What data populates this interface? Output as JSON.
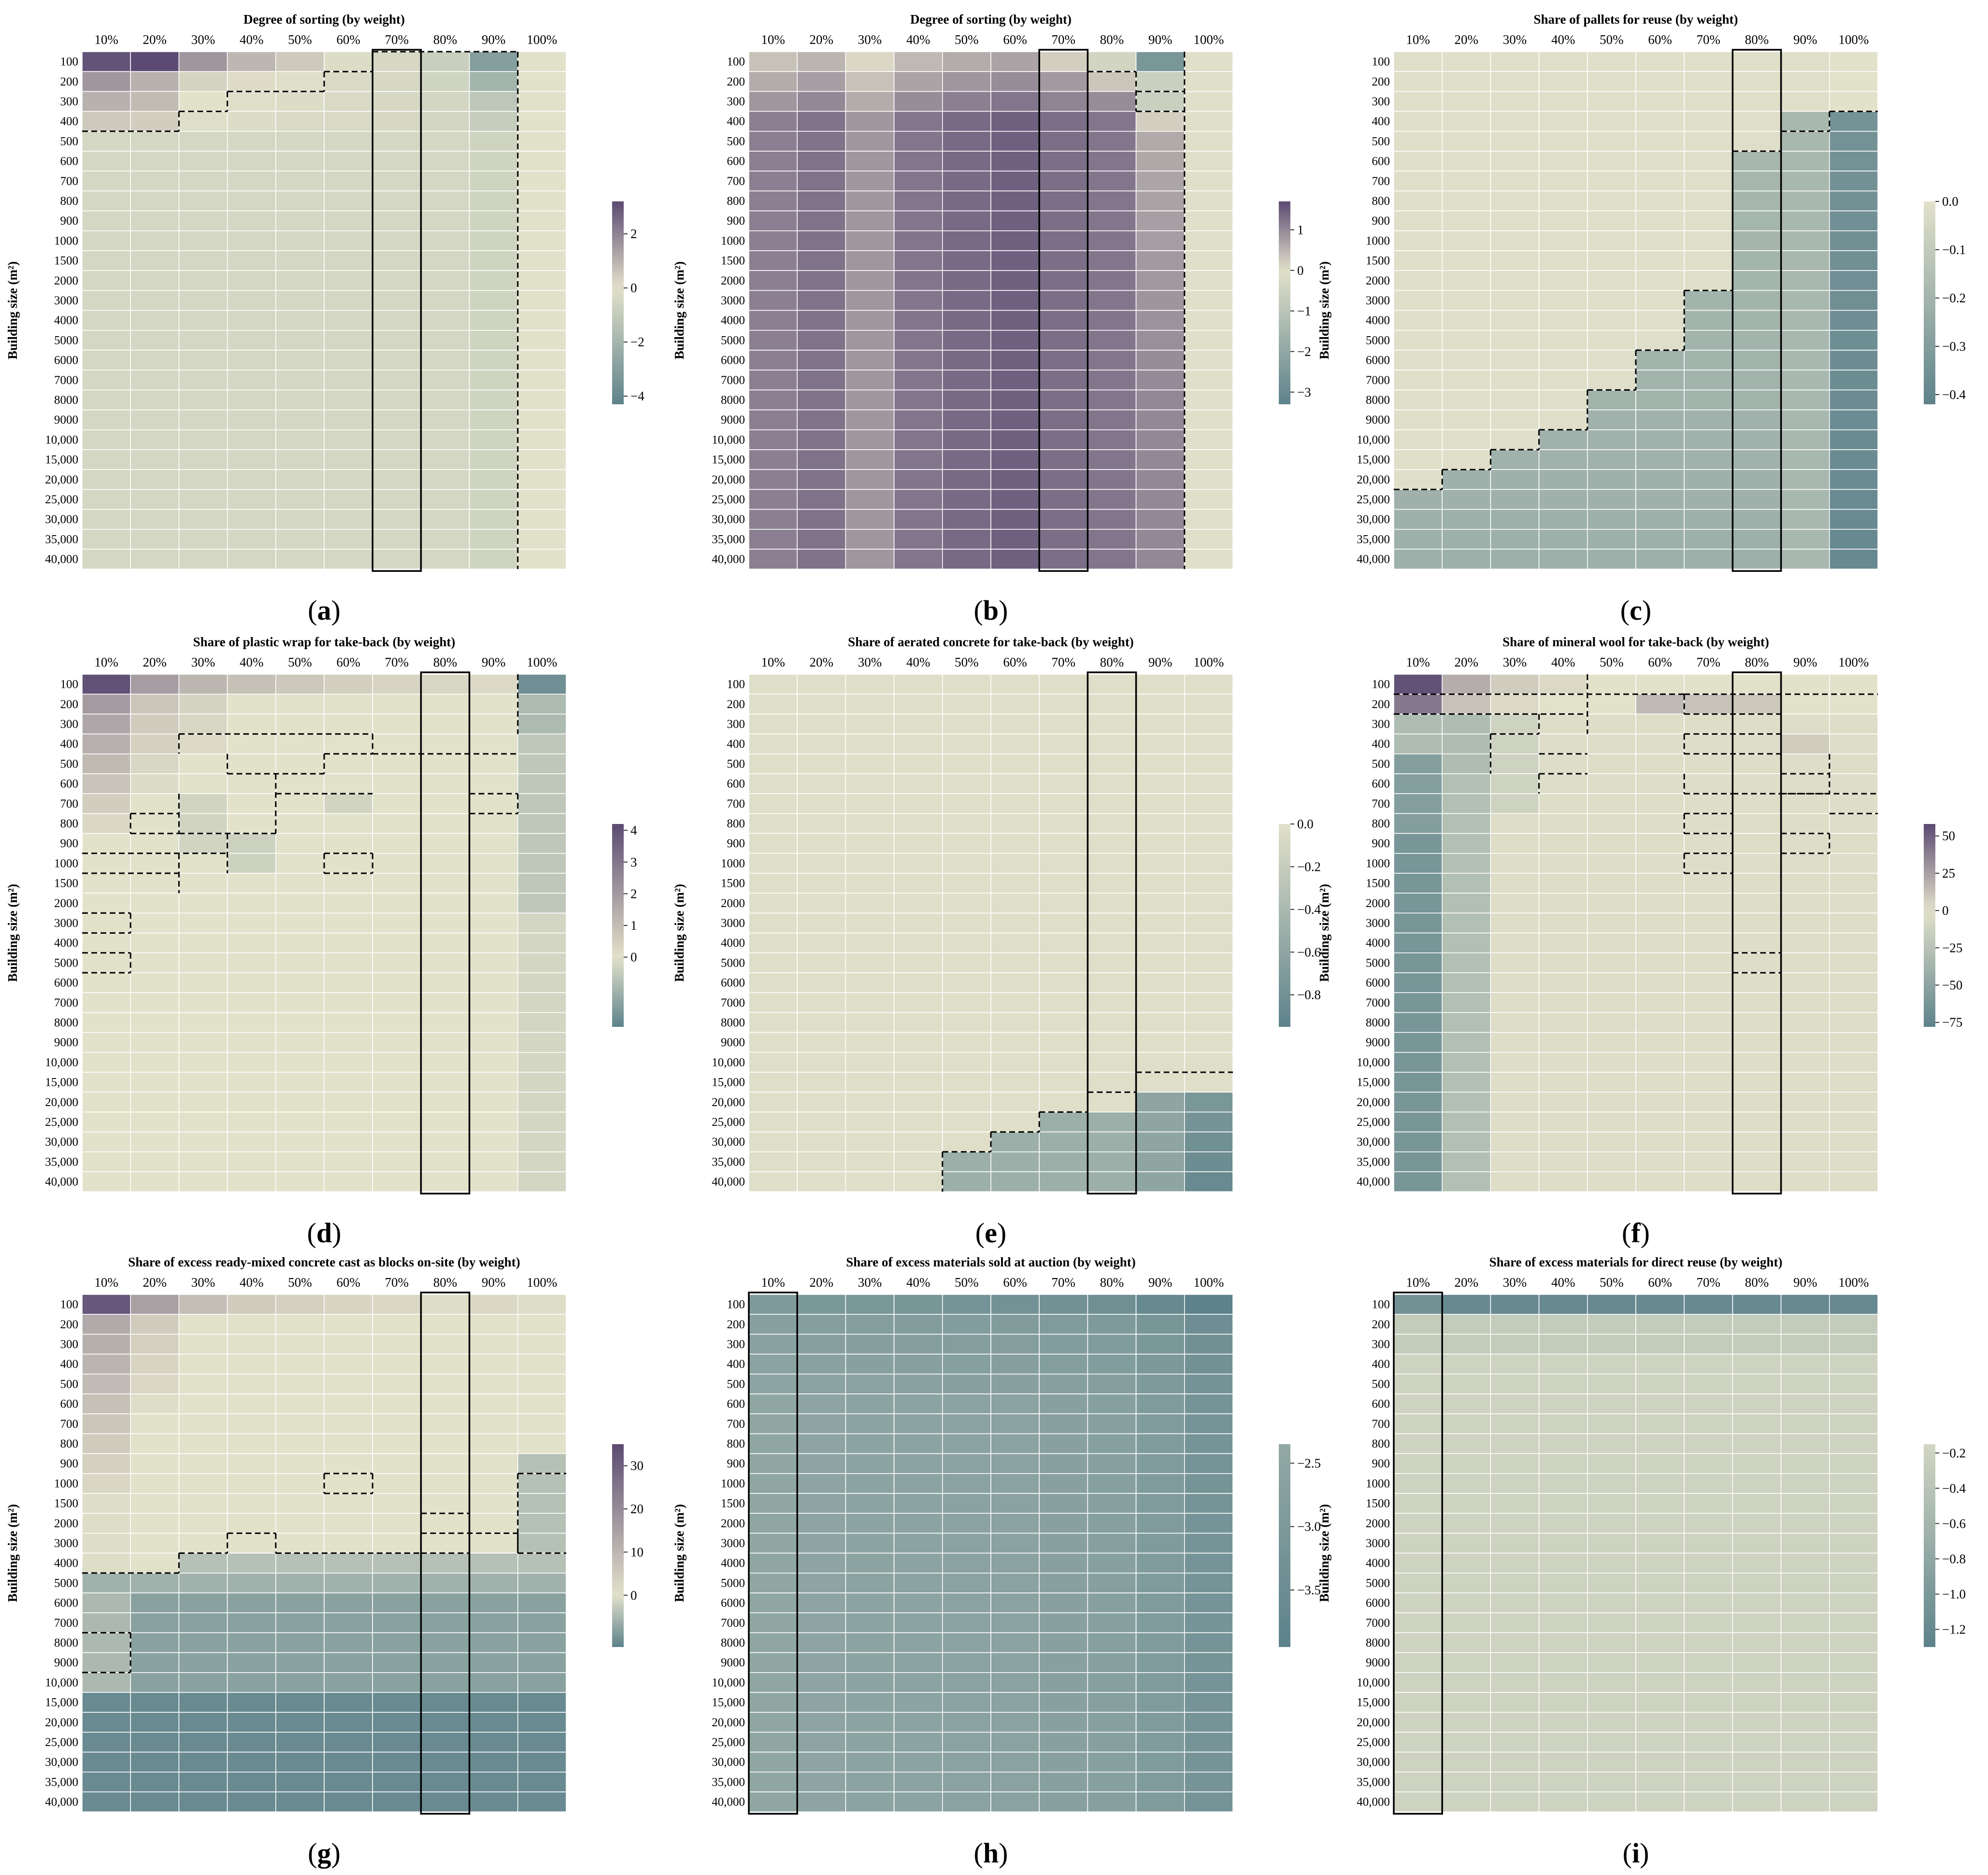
{
  "figure": {
    "palette": {
      "light": "#e2e1ca",
      "dark_purple": "#5c4a72",
      "dark_teal": "#5d828b",
      "grid_line": "#ffffff",
      "dashed_boundary": "#000000",
      "highlight_box": "#000000"
    },
    "x_categories": [
      "10%",
      "20%",
      "30%",
      "40%",
      "50%",
      "60%",
      "70%",
      "80%",
      "90%",
      "100%"
    ],
    "y_categories": [
      "100",
      "200",
      "300",
      "400",
      "500",
      "600",
      "700",
      "800",
      "900",
      "1000",
      "1500",
      "2000",
      "3000",
      "4000",
      "5000",
      "6000",
      "7000",
      "8000",
      "9000",
      "10,000",
      "15,000",
      "20,000",
      "25,000",
      "30,000",
      "35,000",
      "40,000"
    ],
    "ylabel": "Building size (m²)"
  },
  "chart_data": [
    {
      "type": "heatmap",
      "panel_label": "a",
      "title": "Degree of sorting (by weight)",
      "highlight_column": "70%",
      "colorbar_range": [
        -4.3,
        3.2
      ],
      "colorbar_ticks": [
        "2",
        "0",
        "−2",
        "−4"
      ],
      "colorbar_tick_values": [
        2,
        0,
        -2,
        -4
      ],
      "model": {
        "kind": "sorting_a"
      },
      "values_note": "Estimated from colour: top-left cells ~3, 90% column ~-2 to -4, most cells ~-0.5"
    },
    {
      "type": "heatmap",
      "panel_label": "b",
      "title": "Degree of sorting (by weight)",
      "highlight_column": "70%",
      "colorbar_range": [
        -3.3,
        1.7
      ],
      "colorbar_ticks": [
        "1",
        "0",
        "−1",
        "−2",
        "−3"
      ],
      "colorbar_tick_values": [
        1,
        0,
        -1,
        -2,
        -3
      ],
      "model": {
        "kind": "sorting_b"
      },
      "values_note": "Estimated: most cells strongly positive (~1.2-1.6), 90% column near top negative (~-2.5)"
    },
    {
      "type": "heatmap",
      "panel_label": "c",
      "title": "Share of pallets for reuse (by weight)",
      "highlight_column": "80%",
      "colorbar_range": [
        -0.42,
        0.0
      ],
      "colorbar_ticks": [
        "0.0",
        "−0.1",
        "−0.2",
        "−0.3",
        "−0.4"
      ],
      "colorbar_tick_values": [
        0,
        -0.1,
        -0.2,
        -0.3,
        -0.4
      ],
      "model": {
        "kind": "stair_c"
      },
      "values_note": "Estimated: ~0 above staircase, ~-0.18 below, 100% column ~-0.35"
    },
    {
      "type": "heatmap",
      "panel_label": "d",
      "title": "Share of plastic wrap for take-back (by weight)",
      "highlight_column": "80%",
      "colorbar_range": [
        -2.2,
        4.2
      ],
      "colorbar_ticks": [
        "4",
        "3",
        "2",
        "1",
        "0"
      ],
      "colorbar_tick_values": [
        4,
        3,
        2,
        1,
        0
      ],
      "model": {
        "kind": "plastic_d"
      },
      "values_note": "Estimated: top-left ~4, 100% column top ~-2, most cells ~0"
    },
    {
      "type": "heatmap",
      "panel_label": "e",
      "title": "Share of aerated concrete for take-back (by weight)",
      "highlight_column": "80%",
      "colorbar_range": [
        -0.95,
        0.0
      ],
      "colorbar_ticks": [
        "0.0",
        "−0.2",
        "−0.4",
        "−0.6",
        "−0.8"
      ],
      "colorbar_tick_values": [
        0,
        -0.2,
        -0.4,
        -0.6,
        -0.8
      ],
      "model": {
        "kind": "aerated_e"
      },
      "values_note": "Estimated: ~0 everywhere except bottom-right region (~-0.5 to -0.9)"
    },
    {
      "type": "heatmap",
      "panel_label": "f",
      "title": "Share of mineral wool for take-back (by weight)",
      "highlight_column": "80%",
      "colorbar_range": [
        -78,
        58
      ],
      "colorbar_ticks": [
        "50",
        "25",
        "0",
        "−25",
        "−50",
        "−75"
      ],
      "colorbar_tick_values": [
        50,
        25,
        0,
        -25,
        -50,
        -75
      ],
      "model": {
        "kind": "wool_f"
      },
      "values_note": "Estimated: 10% column top ~55, 10% column lower ~-65, most cells ~0"
    },
    {
      "type": "heatmap",
      "panel_label": "g",
      "title": "Share of excess ready-mixed concrete cast as blocks on-site (by weight)",
      "highlight_column": "80%",
      "colorbar_range": [
        -12,
        35
      ],
      "colorbar_ticks": [
        "30",
        "20",
        "10",
        "0"
      ],
      "colorbar_tick_values": [
        30,
        20,
        10,
        0
      ],
      "model": {
        "kind": "concrete_g"
      },
      "values_note": "Estimated: top-left ~32, upper rows ~0, bottom rows ~-11"
    },
    {
      "type": "heatmap",
      "panel_label": "h",
      "title": "Share of excess materials sold at auction (by weight)",
      "highlight_column": "10%",
      "colorbar_range": [
        -3.95,
        -2.35
      ],
      "colorbar_ticks": [
        "−2.5",
        "−3.0",
        "−3.5"
      ],
      "colorbar_tick_values": [
        -2.5,
        -3.0,
        -3.5
      ],
      "model": {
        "kind": "auction_h"
      },
      "values_note": "Estimated: gradual decline toward top-right (~-3.9)"
    },
    {
      "type": "heatmap",
      "panel_label": "i",
      "title": "Share of excess materials for direct reuse (by weight)",
      "highlight_column": "10%",
      "colorbar_range": [
        -1.3,
        -0.15
      ],
      "colorbar_ticks": [
        "−0.2",
        "−0.4",
        "−0.6",
        "−0.8",
        "−1.0",
        "−1.2"
      ],
      "colorbar_tick_values": [
        -0.2,
        -0.4,
        -0.6,
        -0.8,
        -1.0,
        -1.2
      ],
      "model": {
        "kind": "reuse_i"
      },
      "values_note": "Estimated: top row ~-1.2, rest ~-0.2"
    }
  ]
}
